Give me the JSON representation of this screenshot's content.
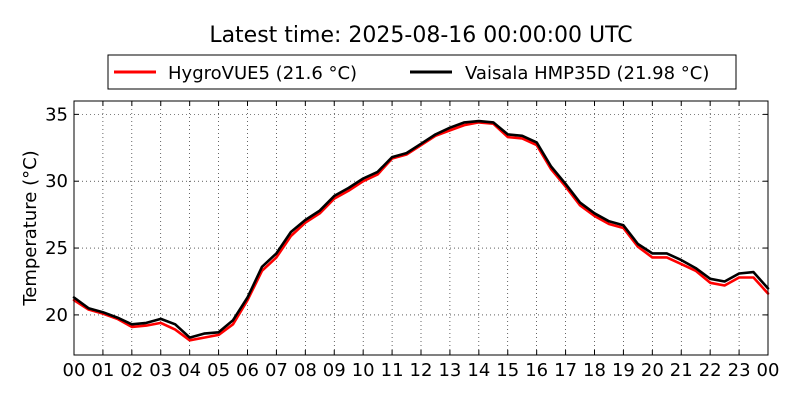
{
  "chart_data": {
    "type": "line",
    "title": "Latest time: 2025-08-16 00:00:00 UTC",
    "xlabel": "",
    "ylabel": "Temperature (°C)",
    "xlim": [
      0,
      24
    ],
    "ylim": [
      17,
      36
    ],
    "grid": true,
    "legend_position": "top-center",
    "x_ticks": [
      "00",
      "01",
      "02",
      "03",
      "04",
      "05",
      "06",
      "07",
      "08",
      "09",
      "10",
      "11",
      "12",
      "13",
      "14",
      "15",
      "16",
      "17",
      "18",
      "19",
      "20",
      "21",
      "22",
      "23",
      "00"
    ],
    "y_ticks": [
      20,
      25,
      30,
      35
    ],
    "x": [
      0,
      0.5,
      1,
      1.5,
      2,
      2.5,
      3,
      3.5,
      4,
      4.5,
      5,
      5.5,
      6,
      6.5,
      7,
      7.5,
      8,
      8.5,
      9,
      9.5,
      10,
      10.5,
      11,
      11.5,
      12,
      12.5,
      13,
      13.5,
      14,
      14.5,
      15,
      15.5,
      16,
      16.5,
      17,
      17.5,
      18,
      18.5,
      19,
      19.5,
      20,
      20.5,
      21,
      21.5,
      22,
      22.5,
      23,
      23.5,
      24
    ],
    "series": [
      {
        "name": "HygroVUE5 (21.6 °C)",
        "color": "#ff0000",
        "values": [
          21.1,
          20.4,
          20.1,
          19.7,
          19.1,
          19.2,
          19.4,
          18.9,
          18.1,
          18.3,
          18.5,
          19.3,
          21.1,
          23.3,
          24.3,
          25.9,
          26.9,
          27.6,
          28.7,
          29.3,
          30.0,
          30.5,
          31.7,
          32.0,
          32.7,
          33.4,
          33.8,
          34.2,
          34.4,
          34.3,
          33.3,
          33.2,
          32.7,
          30.9,
          29.6,
          28.2,
          27.4,
          26.8,
          26.5,
          25.1,
          24.3,
          24.3,
          23.8,
          23.3,
          22.4,
          22.2,
          22.8,
          22.8,
          21.6
        ]
      },
      {
        "name": "Vaisala HMP35D (21.98 °C)",
        "color": "#000000",
        "values": [
          21.3,
          20.5,
          20.2,
          19.8,
          19.3,
          19.4,
          19.7,
          19.3,
          18.3,
          18.6,
          18.7,
          19.6,
          21.3,
          23.6,
          24.6,
          26.2,
          27.1,
          27.8,
          28.9,
          29.5,
          30.2,
          30.7,
          31.8,
          32.1,
          32.8,
          33.5,
          34.0,
          34.4,
          34.5,
          34.4,
          33.5,
          33.4,
          32.9,
          31.1,
          29.8,
          28.4,
          27.6,
          27.0,
          26.7,
          25.3,
          24.6,
          24.6,
          24.1,
          23.5,
          22.7,
          22.5,
          23.1,
          23.2,
          21.98
        ]
      }
    ]
  }
}
